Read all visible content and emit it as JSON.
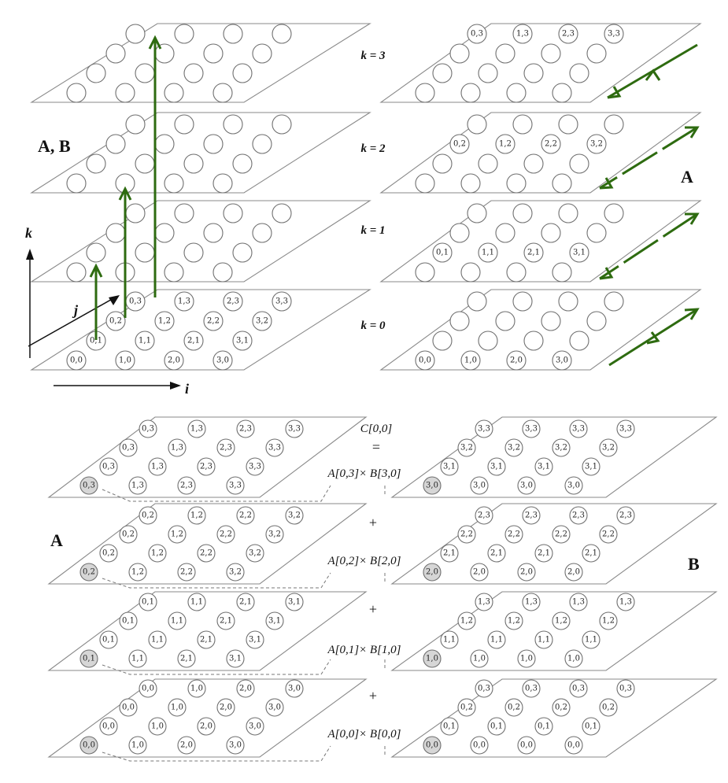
{
  "labels": {
    "ab": "A, B",
    "a_right": "A",
    "a_bottom": "A",
    "b_bottom": "B",
    "axis_i": "i",
    "axis_j": "j",
    "axis_k": "k",
    "k_levels": [
      "k = 3",
      "k = 2",
      "k = 1",
      "k = 0"
    ],
    "result": "C[0,0]",
    "equals": "=",
    "plus": "+",
    "products": [
      "A[0,3]× B[3,0]",
      "A[0,2]× B[2,0]",
      "A[0,1]× B[1,0]",
      "A[0,0]× B[0,0]"
    ]
  },
  "grids": {
    "left_k0": [
      [
        "0,0",
        "1,0",
        "2,0",
        "3,0"
      ],
      [
        "0,1",
        "1,1",
        "2,1",
        "3,1"
      ],
      [
        "0,2",
        "1,2",
        "2,2",
        "3,2"
      ],
      [
        "0,3",
        "1,3",
        "2,3",
        "3,3"
      ]
    ],
    "right_A": [
      [
        [
          "",
          "",
          "",
          ""
        ],
        [
          "",
          "",
          "",
          ""
        ],
        [
          "",
          "",
          "",
          ""
        ],
        [
          "0,3",
          "1,3",
          "2,3",
          "3,3"
        ]
      ],
      [
        [
          "",
          "",
          "",
          ""
        ],
        [
          "",
          "",
          "",
          ""
        ],
        [
          "0,2",
          "1,2",
          "2,2",
          "3,2"
        ],
        [
          "",
          "",
          "",
          ""
        ]
      ],
      [
        [
          "",
          "",
          "",
          ""
        ],
        [
          "0,1",
          "1,1",
          "2,1",
          "3,1"
        ],
        [
          "",
          "",
          "",
          ""
        ],
        [
          "",
          "",
          "",
          ""
        ]
      ],
      [
        [
          "0,0",
          "1,0",
          "2,0",
          "3,0"
        ],
        [
          "",
          "",
          "",
          ""
        ],
        [
          "",
          "",
          "",
          ""
        ],
        [
          "",
          "",
          "",
          ""
        ]
      ]
    ],
    "bottom_A": [
      [
        [
          "0,3",
          "1,3",
          "2,3",
          "3,3"
        ],
        [
          "0,3",
          "1,3",
          "2,3",
          "3,3"
        ],
        [
          "0,3",
          "1,3",
          "2,3",
          "3,3"
        ],
        [
          "0,3",
          "1,3",
          "2,3",
          "3,3"
        ]
      ],
      [
        [
          "0,2",
          "1,2",
          "2,2",
          "3,2"
        ],
        [
          "0,2",
          "1,2",
          "2,2",
          "3,2"
        ],
        [
          "0,2",
          "1,2",
          "2,2",
          "3,2"
        ],
        [
          "0,2",
          "1,2",
          "2,2",
          "3,2"
        ]
      ],
      [
        [
          "0,1",
          "1,1",
          "2,1",
          "3,1"
        ],
        [
          "0,1",
          "1,1",
          "2,1",
          "3,1"
        ],
        [
          "0,1",
          "1,1",
          "2,1",
          "3,1"
        ],
        [
          "0,1",
          "1,1",
          "2,1",
          "3,1"
        ]
      ],
      [
        [
          "0,0",
          "1,0",
          "2,0",
          "3,0"
        ],
        [
          "0,0",
          "1,0",
          "2,0",
          "3,0"
        ],
        [
          "0,0",
          "1,0",
          "2,0",
          "3,0"
        ],
        [
          "0,0",
          "1,0",
          "2,0",
          "3,0"
        ]
      ]
    ],
    "bottom_B": [
      [
        [
          "3,0",
          "3,0",
          "3,0",
          "3,0"
        ],
        [
          "3,1",
          "3,1",
          "3,1",
          "3,1"
        ],
        [
          "3,2",
          "3,2",
          "3,2",
          "3,2"
        ],
        [
          "3,3",
          "3,3",
          "3,3",
          "3,3"
        ]
      ],
      [
        [
          "2,0",
          "2,0",
          "2,0",
          "2,0"
        ],
        [
          "2,1",
          "2,1",
          "2,1",
          "2,1"
        ],
        [
          "2,2",
          "2,2",
          "2,2",
          "2,2"
        ],
        [
          "2,3",
          "2,3",
          "2,3",
          "2,3"
        ]
      ],
      [
        [
          "1,0",
          "1,0",
          "1,0",
          "1,0"
        ],
        [
          "1,1",
          "1,1",
          "1,1",
          "1,1"
        ],
        [
          "1,2",
          "1,2",
          "1,2",
          "1,2"
        ],
        [
          "1,3",
          "1,3",
          "1,3",
          "1,3"
        ]
      ],
      [
        [
          "0,0",
          "0,0",
          "0,0",
          "0,0"
        ],
        [
          "0,1",
          "0,1",
          "0,1",
          "0,1"
        ],
        [
          "0,2",
          "0,2",
          "0,2",
          "0,2"
        ],
        [
          "0,3",
          "0,3",
          "0,3",
          "0,3"
        ]
      ]
    ]
  },
  "colors": {
    "arrow": "#2e6b10",
    "highlight": "#d6d6d6"
  }
}
